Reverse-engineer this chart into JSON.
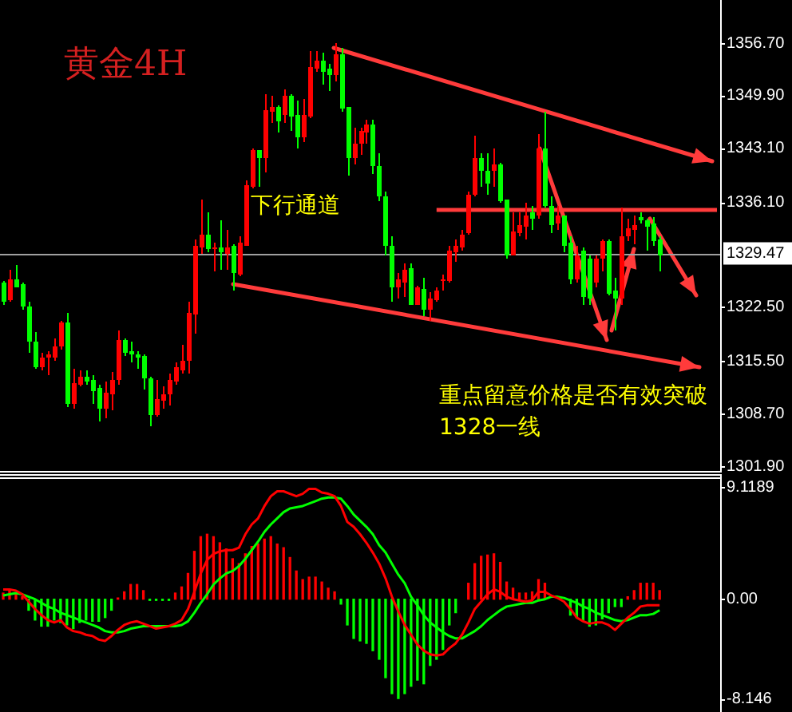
{
  "chart_data": [
    {
      "type": "candlestick",
      "title": "黄金4H",
      "categories": [
        null,
        null,
        null,
        null,
        null,
        null,
        null,
        null,
        null,
        null,
        null,
        null,
        null,
        null,
        null,
        null,
        null,
        null,
        null,
        null,
        null,
        null,
        null,
        null,
        null,
        null,
        null,
        null,
        null,
        null,
        null,
        null,
        null,
        null,
        null,
        null,
        null,
        null,
        null,
        null,
        null,
        null,
        null,
        null,
        null,
        null,
        null,
        null,
        null,
        null,
        null,
        null,
        null,
        null,
        null,
        null,
        null,
        null,
        null,
        null,
        null,
        null,
        null,
        null,
        null,
        null,
        null,
        null,
        null,
        null,
        null,
        null,
        null,
        null,
        null,
        null,
        null,
        null,
        null,
        null,
        null,
        null,
        null,
        null,
        null,
        null,
        null,
        null,
        null,
        null,
        null,
        null,
        null,
        null,
        null,
        null,
        null,
        null,
        null,
        null,
        null,
        null,
        null,
        null,
        null,
        null,
        null,
        null,
        null,
        null,
        null,
        null,
        null
      ],
      "ohlc": [
        [
          1325.7,
          1326.0,
          1322.9,
          1323.3
        ],
        [
          1323.4,
          1327.3,
          1323.3,
          1326.2
        ],
        [
          1326.2,
          1327.9,
          1325.0,
          1325.1
        ],
        [
          1325.4,
          1325.7,
          1322.2,
          1322.6
        ],
        [
          1322.7,
          1323.3,
          1316.7,
          1318.1
        ],
        [
          1318.1,
          1319.3,
          1314.6,
          1314.8
        ],
        [
          1314.8,
          1316.7,
          1314.3,
          1316.0
        ],
        [
          1315.9,
          1316.8,
          1313.7,
          1316.3
        ],
        [
          1316.0,
          1318.4,
          1315.6,
          1317.5
        ],
        [
          1317.4,
          1320.8,
          1317.0,
          1320.5
        ],
        [
          1320.6,
          1321.7,
          1309.6,
          1309.9
        ],
        [
          1309.9,
          1314.5,
          1309.4,
          1312.7
        ],
        [
          1312.5,
          1314.3,
          1312.2,
          1313.6
        ],
        [
          1313.6,
          1314.4,
          1312.4,
          1312.9
        ],
        [
          1313.1,
          1313.8,
          1309.9,
          1311.7
        ],
        [
          1312.0,
          1312.5,
          1307.7,
          1309.3
        ],
        [
          1309.3,
          1312.9,
          1308.2,
          1311.4
        ],
        [
          1311.3,
          1314.2,
          1309.1,
          1313.1
        ],
        [
          1313.1,
          1319.6,
          1312.5,
          1318.2
        ],
        [
          1318.2,
          1318.4,
          1316.1,
          1316.7
        ],
        [
          1316.8,
          1318.1,
          1315.4,
          1316.3
        ],
        [
          1316.5,
          1316.8,
          1314.6,
          1315.9
        ],
        [
          1316.1,
          1316.5,
          1311.8,
          1313.2
        ],
        [
          1313.4,
          1313.6,
          1307.0,
          1308.6
        ],
        [
          1308.6,
          1313.1,
          1308.4,
          1310.6
        ],
        [
          1310.5,
          1312.2,
          1309.3,
          1311.3
        ],
        [
          1311.2,
          1313.9,
          1309.8,
          1313.1
        ],
        [
          1312.9,
          1315.3,
          1312.5,
          1314.7
        ],
        [
          1314.3,
          1317.7,
          1313.9,
          1315.6
        ],
        [
          1315.5,
          1323.3,
          1313.9,
          1321.7
        ],
        [
          1321.5,
          1331.2,
          1319.1,
          1330.4
        ],
        [
          1330.2,
          1336.4,
          1329.5,
          1331.9
        ],
        [
          1331.9,
          1334.8,
          1329.7,
          1330.0
        ],
        [
          1330.2,
          1330.9,
          1327.2,
          1330.3
        ],
        [
          1330.3,
          1333.8,
          1327.4,
          1329.7
        ],
        [
          1329.5,
          1332.5,
          1327.4,
          1330.3
        ],
        [
          1330.4,
          1330.7,
          1324.6,
          1326.9
        ],
        [
          1326.7,
          1331.6,
          1326.5,
          1330.8
        ],
        [
          1330.5,
          1339.0,
          1330.4,
          1338.3
        ],
        [
          1338.1,
          1343.1,
          1337.8,
          1342.9
        ],
        [
          1342.8,
          1342.9,
          1338.1,
          1341.8
        ],
        [
          1341.8,
          1350.0,
          1339.9,
          1348.0
        ],
        [
          1347.8,
          1349.8,
          1346.4,
          1348.5
        ],
        [
          1348.5,
          1348.6,
          1345.2,
          1346.6
        ],
        [
          1347.5,
          1350.7,
          1346.4,
          1349.9
        ],
        [
          1349.9,
          1350.2,
          1345.4,
          1347.3
        ],
        [
          1347.4,
          1349.2,
          1343.1,
          1344.5
        ],
        [
          1344.6,
          1349.5,
          1344.0,
          1347.4
        ],
        [
          1347.3,
          1355.6,
          1347.0,
          1353.6
        ],
        [
          1353.4,
          1355.6,
          1352.9,
          1354.5
        ],
        [
          1354.5,
          1355.4,
          1351.3,
          1353.0
        ],
        [
          1353.4,
          1354.1,
          1350.6,
          1352.5
        ],
        [
          1352.5,
          1356.8,
          1351.8,
          1355.3
        ],
        [
          1355.3,
          1356.0,
          1347.8,
          1348.2
        ],
        [
          1348.4,
          1348.5,
          1339.5,
          1341.8
        ],
        [
          1341.8,
          1345.7,
          1341.0,
          1343.7
        ],
        [
          1343.7,
          1345.7,
          1342.3,
          1345.4
        ],
        [
          1345.2,
          1346.8,
          1343.7,
          1346.2
        ],
        [
          1346.2,
          1346.8,
          1339.7,
          1340.8
        ],
        [
          1340.9,
          1342.4,
          1336.2,
          1336.9
        ],
        [
          1336.9,
          1337.4,
          1329.3,
          1330.4
        ],
        [
          1330.5,
          1331.6,
          1323.3,
          1325.0
        ],
        [
          1325.1,
          1326.9,
          1323.6,
          1326.2
        ],
        [
          1325.8,
          1328.1,
          1323.9,
          1327.4
        ],
        [
          1327.5,
          1328.1,
          1322.8,
          1322.9
        ],
        [
          1322.9,
          1325.3,
          1322.8,
          1325.0
        ],
        [
          1324.8,
          1326.4,
          1321.4,
          1322.1
        ],
        [
          1322.2,
          1324.4,
          1320.8,
          1323.7
        ],
        [
          1323.5,
          1325.0,
          1323.3,
          1324.7
        ],
        [
          1326.1,
          1326.7,
          1324.6,
          1326.2
        ],
        [
          1325.9,
          1330.5,
          1325.7,
          1329.8
        ],
        [
          1329.6,
          1331.2,
          1328.3,
          1330.4
        ],
        [
          1330.2,
          1332.5,
          1329.8,
          1332.0
        ],
        [
          1332.1,
          1337.5,
          1331.9,
          1337.1
        ],
        [
          1337.1,
          1344.7,
          1336.8,
          1341.8
        ],
        [
          1341.8,
          1342.4,
          1338.2,
          1340.2
        ],
        [
          1340.2,
          1342.4,
          1337.1,
          1338.5
        ],
        [
          1340.2,
          1343.0,
          1338.2,
          1341.1
        ],
        [
          1341.1,
          1341.2,
          1336.1,
          1336.2
        ],
        [
          1336.4,
          1336.5,
          1328.8,
          1329.2
        ],
        [
          1329.3,
          1334.7,
          1329.2,
          1332.3
        ],
        [
          1332.1,
          1334.7,
          1331.6,
          1333.2
        ],
        [
          1333.0,
          1336.1,
          1331.2,
          1334.4
        ],
        [
          1334.8,
          1335.7,
          1332.6,
          1333.9
        ],
        [
          1334.4,
          1344.9,
          1334.0,
          1343.0
        ],
        [
          1343.0,
          1347.8,
          1335.4,
          1335.7
        ],
        [
          1335.7,
          1336.8,
          1332.1,
          1333.2
        ],
        [
          1333.3,
          1335.7,
          1332.6,
          1334.3
        ],
        [
          1334.3,
          1334.4,
          1329.7,
          1330.5
        ],
        [
          1330.9,
          1331.6,
          1325.6,
          1326.1
        ],
        [
          1326.1,
          1330.5,
          1325.7,
          1329.3
        ],
        [
          1329.9,
          1330.2,
          1322.8,
          1323.8
        ],
        [
          1328.8,
          1329.2,
          1322.9,
          1323.6
        ],
        [
          1325.7,
          1329.2,
          1325.0,
          1328.8
        ],
        [
          1328.8,
          1331.2,
          1327.1,
          1331.1
        ],
        [
          1331.1,
          1331.2,
          1324.0,
          1324.3
        ],
        [
          1324.7,
          1326.3,
          1319.5,
          1323.6
        ],
        [
          1323.6,
          1335.4,
          1322.9,
          1331.6
        ],
        [
          1331.6,
          1334.0,
          1331.1,
          1332.8
        ],
        [
          1332.5,
          1334.3,
          1330.6,
          1333.1
        ],
        [
          1334.1,
          1334.7,
          1333.3,
          1333.7
        ],
        [
          1333.7,
          1334.0,
          1329.9,
          1333.0
        ],
        [
          1333.3,
          1334.1,
          1330.5,
          1331.1
        ],
        [
          1331.2,
          1331.6,
          1327.1,
          1329.3
        ],
        null,
        null,
        null,
        null,
        null,
        null,
        null,
        null,
        null
      ],
      "colors": [
        "#00ff00",
        "#ff0000",
        "#00ff00",
        "#00ff00",
        "#00ff00",
        "#00ff00",
        "#ff0000",
        "#ff0000",
        "#ff0000",
        "#ff0000",
        "#00ff00",
        "#ff0000",
        "#ff0000",
        "#00ff00",
        "#00ff00",
        "#00ff00",
        "#ff0000",
        "#ff0000",
        "#ff0000",
        "#00ff00",
        "#00ff00",
        "#00ff00",
        "#00ff00",
        "#00ff00",
        "#ff0000",
        "#ff0000",
        "#ff0000",
        "#ff0000",
        "#ff0000",
        "#ff0000",
        "#ff0000",
        "#ff0000",
        "#00ff00",
        "#ff0000",
        "#00ff00",
        "#ff0000",
        "#00ff00",
        "#ff0000",
        "#ff0000",
        "#ff0000",
        "#00ff00",
        "#ff0000",
        "#ff0000",
        "#00ff00",
        "#ff0000",
        "#00ff00",
        "#00ff00",
        "#ff0000",
        "#ff0000",
        "#ff0000",
        "#00ff00",
        "#00ff00",
        "#ff0000",
        "#00ff00",
        "#00ff00",
        "#ff0000",
        "#ff0000",
        "#ff0000",
        "#00ff00",
        "#00ff00",
        "#00ff00",
        "#00ff00",
        "#ff0000",
        "#ff0000",
        "#00ff00",
        "#ff0000",
        "#00ff00",
        "#ff0000",
        "#ff0000",
        "#ff0000",
        "#ff0000",
        "#ff0000",
        "#ff0000",
        "#ff0000",
        "#ff0000",
        "#00ff00",
        "#00ff00",
        "#ff0000",
        "#00ff00",
        "#00ff00",
        "#ff0000",
        "#ff0000",
        "#ff0000",
        "#00ff00",
        "#ff0000",
        "#00ff00",
        "#00ff00",
        "#ff0000",
        "#00ff00",
        "#00ff00",
        "#ff0000",
        "#00ff00",
        "#00ff00",
        "#ff0000",
        "#ff0000",
        "#00ff00",
        "#00ff00",
        "#ff0000",
        "#ff0000",
        "#ff0000",
        "#00ff00",
        "#00ff00",
        "#00ff00",
        "#00ff00",
        null,
        null,
        null,
        null,
        null,
        null,
        null,
        null,
        null
      ],
      "ylim": [
        1301.1,
        1362.3
      ],
      "yticks": [
        {
          "value": 1356.7,
          "label": "1356.70"
        },
        {
          "value": 1349.9,
          "label": "1349.90"
        },
        {
          "value": 1343.1,
          "label": "1343.10"
        },
        {
          "value": 1336.1,
          "label": "1336.10"
        },
        {
          "value": 1322.5,
          "label": "1322.50"
        },
        {
          "value": 1315.5,
          "label": "1315.50"
        },
        {
          "value": 1308.7,
          "label": "1308.70"
        },
        {
          "value": 1301.9,
          "label": "1301.90"
        }
      ],
      "ref_lines": [
        {
          "axis": "y",
          "value": 1329.47,
          "label": "1329.47",
          "color": "#a0a0a0"
        }
      ],
      "series": [
        {
          "type": "line",
          "color": "#ff3b3b",
          "values": [
            null,
            null,
            null,
            null,
            null,
            null,
            null,
            null,
            null,
            null,
            null,
            null,
            null,
            null,
            null,
            null,
            null,
            null,
            null,
            null,
            null,
            null,
            null,
            null,
            null,
            null,
            null,
            null,
            null,
            null,
            null,
            null,
            null,
            null,
            null,
            null,
            null,
            null,
            null,
            null,
            null,
            null,
            null,
            null,
            null,
            null,
            null,
            null,
            null,
            null,
            null,
            null,
            null,
            null,
            null,
            null,
            null,
            null,
            null,
            null,
            null,
            null,
            null,
            null,
            null,
            null,
            null,
            null,
            1335.1,
            1335.1,
            1335.1,
            1335.1,
            1335.1,
            1335.1,
            1335.1,
            1335.1,
            1335.1,
            1335.1,
            1335.1,
            1335.1,
            1335.1,
            1335.1,
            1335.1,
            1335.1,
            1335.1,
            1335.1,
            1335.1,
            1335.1,
            1335.1,
            1335.1,
            1335.1,
            1335.1,
            1335.1,
            1335.1,
            1335.1,
            1335.1,
            1335.1,
            1335.1,
            1335.1,
            1335.1,
            1335.1,
            1335.1,
            1335.1,
            1335.1,
            1335.1,
            1335.1,
            1335.1,
            1335.1,
            1335.1,
            1335.1,
            1335.1,
            1335.1,
            1335.1
          ]
        }
      ],
      "annotations": [
        "下行通道",
        "重点留意价格是否有效突破\n1328一线"
      ],
      "tick_labels": "y",
      "legend": false
    },
    {
      "type": "bar",
      "categories": [
        null,
        null,
        null,
        null,
        null,
        null,
        null,
        null,
        null,
        null,
        null,
        null,
        null,
        null,
        null,
        null,
        null,
        null,
        null,
        null,
        null,
        null,
        null,
        null,
        null,
        null,
        null,
        null,
        null,
        null,
        null,
        null,
        null,
        null,
        null,
        null,
        null,
        null,
        null,
        null,
        null,
        null,
        null,
        null,
        null,
        null,
        null,
        null,
        null,
        null,
        null,
        null,
        null,
        null,
        null,
        null,
        null,
        null,
        null,
        null,
        null,
        null,
        null,
        null,
        null,
        null,
        null,
        null,
        null,
        null,
        null,
        null,
        null,
        null,
        null,
        null,
        null,
        null,
        null,
        null,
        null,
        null,
        null,
        null,
        null,
        null,
        null,
        null,
        null,
        null,
        null,
        null,
        null,
        null,
        null,
        null,
        null,
        null,
        null,
        null,
        null,
        null,
        null,
        null,
        null,
        null,
        null,
        null,
        null,
        null,
        null,
        null,
        null
      ],
      "series": [
        {
          "color": "#ff0000",
          "values": [
            0.5,
            0.7,
            0.4,
            0.2,
            null,
            null,
            null,
            null,
            null,
            null,
            null,
            null,
            null,
            null,
            null,
            null,
            null,
            null,
            0.1,
            0.6,
            1.2,
            1.2,
            0.7,
            null,
            null,
            null,
            null,
            0.5,
            1.0,
            2.1,
            3.9,
            5.1,
            5.3,
            5.1,
            4.6,
            4.1,
            3.3,
            2.9,
            3.7,
            4.3,
            4.5,
            4.9,
            5.1,
            4.5,
            4.2,
            3.4,
            2.3,
            1.6,
            1.8,
            1.8,
            1.4,
            0.9,
            0.6,
            null,
            null,
            null,
            null,
            null,
            null,
            null,
            null,
            null,
            null,
            null,
            null,
            null,
            null,
            null,
            null,
            null,
            null,
            null,
            null,
            1.3,
            2.9,
            3.5,
            3.6,
            3.7,
            3.0,
            1.4,
            0.9,
            0.5,
            0.5,
            0.6,
            1.6,
            1.3,
            null,
            null,
            null,
            null,
            null,
            null,
            null,
            null,
            null,
            null,
            null,
            null,
            0.2,
            0.7,
            1.3,
            1.3,
            1.3,
            0.7,
            null,
            null,
            null,
            null,
            null,
            null,
            null,
            null,
            null
          ]
        },
        {
          "color": "#00ff00",
          "values": [
            null,
            null,
            null,
            null,
            -0.9,
            -1.7,
            -2.2,
            -2.2,
            -1.7,
            -1.9,
            -2.1,
            -2.4,
            -1.9,
            -1.7,
            -1.8,
            -1.8,
            -1.5,
            -0.9,
            null,
            null,
            null,
            null,
            null,
            -0.1,
            -0.1,
            -0.1,
            -0.1,
            null,
            null,
            null,
            null,
            null,
            null,
            null,
            null,
            null,
            null,
            null,
            null,
            null,
            null,
            null,
            null,
            null,
            null,
            null,
            null,
            null,
            null,
            null,
            null,
            null,
            null,
            -0.4,
            -2.1,
            -3.2,
            -3.4,
            -3.6,
            -4.2,
            -4.9,
            -6.4,
            -7.7,
            -8.1,
            -7.7,
            -7.1,
            -6.6,
            -6.9,
            -5.4,
            -4.9,
            -4.1,
            -2.1,
            -1.1,
            null,
            null,
            null,
            null,
            null,
            null,
            null,
            null,
            null,
            null,
            null,
            null,
            null,
            null,
            null,
            null,
            null,
            -1.3,
            -1.5,
            -1.8,
            -2.2,
            -2.1,
            -1.6,
            -1.1,
            -0.6,
            -0.6,
            null,
            null,
            null,
            null,
            null,
            null,
            null,
            null,
            null,
            null,
            null,
            null,
            null,
            null,
            null
          ]
        },
        {
          "type": "line",
          "color": "#ff0000",
          "values": [
            0.8,
            0.8,
            0.7,
            0.4,
            -0.2,
            -0.8,
            -1.3,
            -1.7,
            -1.9,
            -1.7,
            -2.3,
            -2.6,
            -2.7,
            -2.9,
            -3.0,
            -3.3,
            -3.4,
            -3.0,
            -2.5,
            -2.1,
            -1.9,
            -1.8,
            -2.0,
            -2.2,
            -2.4,
            -2.3,
            -2.2,
            -2.0,
            -1.7,
            -0.8,
            0.6,
            2.1,
            3.2,
            3.7,
            3.9,
            4.0,
            4.0,
            4.2,
            5.3,
            6.1,
            6.6,
            7.6,
            8.4,
            8.8,
            8.8,
            8.6,
            8.4,
            8.6,
            9.0,
            9.0,
            8.7,
            8.6,
            8.4,
            7.6,
            6.3,
            5.9,
            5.3,
            4.6,
            3.8,
            2.9,
            1.7,
            0.2,
            -1.0,
            -2.1,
            -2.9,
            -3.7,
            -4.2,
            -4.5,
            -4.6,
            -4.5,
            -4.0,
            -3.6,
            -2.9,
            -1.9,
            -0.8,
            -0.2,
            0.4,
            0.8,
            0.6,
            0.2,
            0.0,
            -0.1,
            -0.2,
            -0.1,
            0.6,
            0.6,
            0.3,
            0.1,
            -0.2,
            -0.8,
            -1.5,
            -1.8,
            -2.0,
            -1.9,
            -1.9,
            -2.1,
            -2.5,
            -2.0,
            -1.5,
            -1.1,
            -0.6,
            -0.5,
            -0.5,
            -0.5,
            null,
            null,
            null,
            null,
            null,
            null,
            null,
            null,
            null
          ]
        },
        {
          "type": "line",
          "color": "#00ff00",
          "values": [
            0.3,
            0.4,
            0.5,
            0.4,
            0.2,
            0.0,
            -0.3,
            -0.6,
            -0.8,
            -1.1,
            -1.3,
            -1.5,
            -1.7,
            -1.9,
            -2.1,
            -2.3,
            -2.6,
            -2.7,
            -2.7,
            -2.6,
            -2.4,
            -2.3,
            -2.2,
            -2.2,
            -2.2,
            -2.2,
            -2.2,
            -2.2,
            -2.1,
            -1.8,
            -1.1,
            -0.3,
            0.4,
            1.2,
            1.7,
            2.1,
            2.3,
            2.7,
            3.3,
            4.0,
            4.7,
            5.5,
            6.1,
            6.6,
            7.1,
            7.4,
            7.5,
            7.6,
            7.8,
            8.0,
            8.2,
            8.3,
            8.3,
            8.2,
            7.6,
            6.9,
            6.4,
            5.9,
            5.3,
            4.4,
            3.8,
            2.9,
            2.0,
            1.3,
            0.2,
            -0.5,
            -1.3,
            -1.9,
            -2.3,
            -2.7,
            -3.0,
            -3.2,
            -3.2,
            -2.9,
            -2.6,
            -2.2,
            -1.7,
            -1.3,
            -0.9,
            -0.6,
            -0.5,
            -0.4,
            -0.3,
            -0.3,
            -0.1,
            0.0,
            0.2,
            0.2,
            0.1,
            -0.1,
            -0.3,
            -0.6,
            -0.8,
            -1.1,
            -1.3,
            -1.5,
            -1.7,
            -1.8,
            -1.7,
            -1.5,
            -1.3,
            -1.3,
            -1.2,
            -0.9,
            null,
            null,
            null,
            null,
            null,
            null,
            null,
            null,
            null
          ]
        }
      ],
      "ylim": [
        -9.2,
        10.2
      ],
      "yticks": [
        {
          "value": 9.1189,
          "label": "9.1189"
        },
        {
          "value": 0,
          "label": "0.00"
        },
        {
          "value": -8.146,
          "label": "-8.146"
        }
      ],
      "marker": "none",
      "tick_labels": "y",
      "legend": false
    }
  ]
}
